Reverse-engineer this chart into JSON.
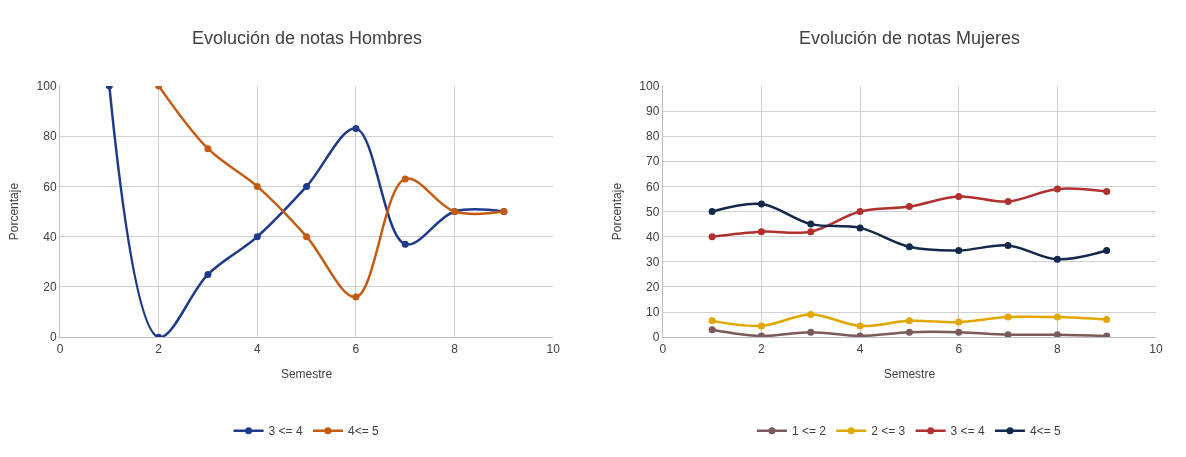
{
  "chart_data": [
    {
      "type": "line",
      "title": "Evolución de notas Hombres",
      "xlabel": "Semestre",
      "ylabel": "Porcentaje",
      "xlim": [
        0,
        10
      ],
      "xticks": [
        0,
        2,
        4,
        6,
        8,
        10
      ],
      "ylim": [
        0,
        100
      ],
      "yticks": [
        0,
        20,
        40,
        60,
        80,
        100
      ],
      "grid": true,
      "legend": "bottom",
      "marker": "circle",
      "line_style": "solid",
      "series": [
        {
          "name": "3 <= 4",
          "color": "#1f3a8a",
          "x": [
            1,
            2,
            3,
            4,
            5,
            6,
            7,
            8,
            9
          ],
          "values": [
            100,
            0,
            25,
            40,
            60,
            83,
            37,
            50,
            50
          ]
        },
        {
          "name": "4<= 5",
          "color": "#c55a11",
          "x": [
            2,
            3,
            4,
            5,
            6,
            7,
            8,
            9
          ],
          "values": [
            100,
            75,
            60,
            40,
            16,
            63,
            50,
            50
          ]
        }
      ]
    },
    {
      "type": "line",
      "title": "Evolución de notas Mujeres",
      "xlabel": "Semestre",
      "ylabel": "Porcentaje",
      "xlim": [
        0,
        10
      ],
      "xticks": [
        0,
        2,
        4,
        6,
        8,
        10
      ],
      "ylim": [
        0,
        100
      ],
      "yticks": [
        0,
        10,
        20,
        30,
        40,
        50,
        60,
        70,
        80,
        90,
        100
      ],
      "grid": true,
      "legend": "bottom",
      "marker": "circle",
      "line_style": "solid",
      "series": [
        {
          "name": "1 <= 2",
          "color": "#7a5a5a",
          "x": [
            1,
            2,
            3,
            4,
            5,
            6,
            7,
            8,
            9
          ],
          "values": [
            3,
            0.5,
            2,
            0.5,
            2,
            2,
            1,
            1,
            0.5
          ]
        },
        {
          "name": "2 <= 3",
          "color": "#e0a800",
          "x": [
            1,
            2,
            3,
            4,
            5,
            6,
            7,
            8,
            9
          ],
          "values": [
            6.5,
            4.5,
            9,
            4.5,
            6.5,
            6,
            8,
            8,
            7
          ]
        },
        {
          "name": "3 <= 4",
          "color": "#b03030",
          "x": [
            1,
            2,
            3,
            4,
            5,
            6,
            7,
            8,
            9
          ],
          "values": [
            40,
            42,
            42,
            50,
            52,
            56,
            54,
            59,
            58
          ]
        },
        {
          "name": "4<= 5",
          "color": "#14284b",
          "x": [
            1,
            2,
            3,
            4,
            5,
            6,
            7,
            8,
            9
          ],
          "values": [
            50,
            53,
            45,
            43.5,
            36,
            34.5,
            36.5,
            31,
            34.5
          ]
        }
      ]
    }
  ]
}
